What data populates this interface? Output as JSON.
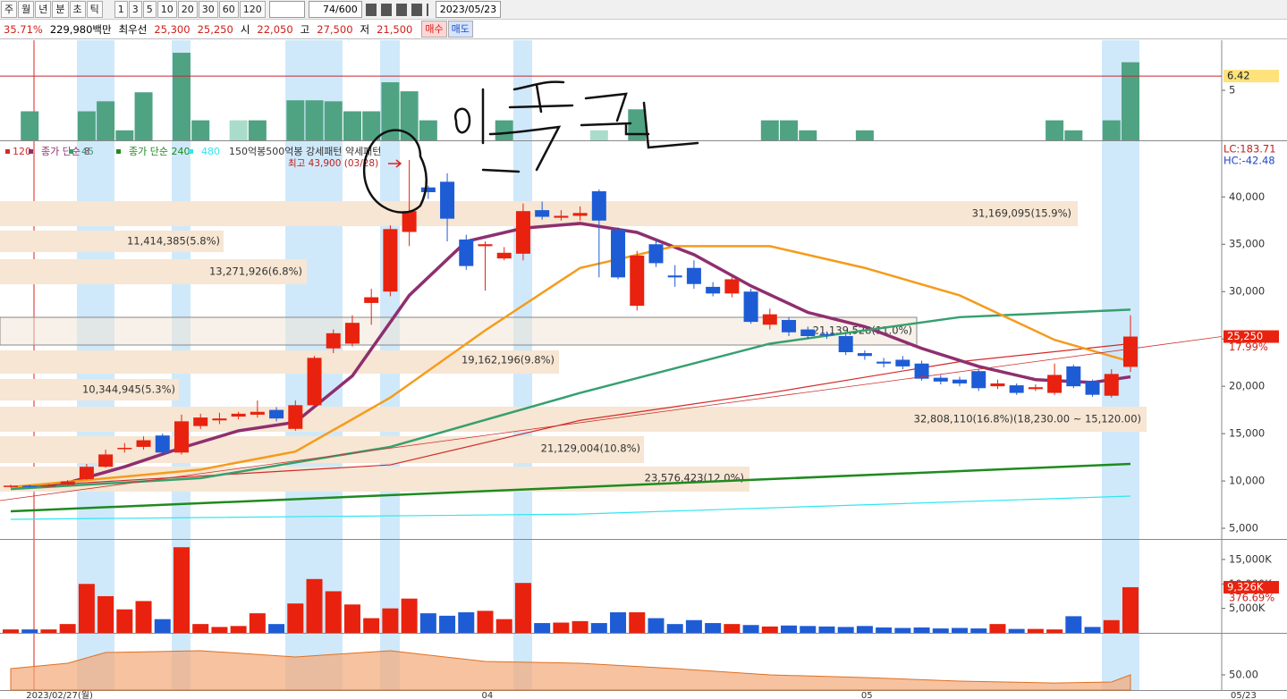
{
  "toolbar": {
    "periods": [
      "주",
      "월",
      "년",
      "분",
      "초",
      "틱"
    ],
    "intervals": [
      "1",
      "3",
      "5",
      "10",
      "20",
      "30",
      "60",
      "120"
    ],
    "count": "74/600",
    "date": "2023/05/23"
  },
  "quote": {
    "change": "35.71%",
    "amount": "229,980백만",
    "best_label": "최우선",
    "best_ask": "25,300",
    "best_bid": "25,250",
    "open_label": "시",
    "open": "22,050",
    "high_label": "고",
    "high": "27,500",
    "low_label": "저",
    "low": "21,500",
    "buy": "매수",
    "sell": "매도"
  },
  "chart_data": [
    {
      "type": "candlestick",
      "categories": [
        null,
        "2023/02/27(월)",
        null,
        null,
        null,
        null,
        null,
        null,
        null,
        null,
        null,
        null,
        null,
        null,
        null,
        null,
        null,
        null,
        null,
        null,
        null,
        null,
        null,
        null,
        null,
        "04",
        null,
        null,
        null,
        null,
        null,
        null,
        null,
        null,
        null,
        null,
        null,
        null,
        null,
        null,
        null,
        null,
        null,
        null,
        null,
        "05",
        null,
        null,
        null,
        null,
        null,
        null,
        null,
        null,
        null,
        null,
        null,
        null,
        null,
        null
      ],
      "open": [
        9400,
        9500,
        9450,
        9600,
        10200,
        11500,
        13400,
        13600,
        14800,
        13000,
        15800,
        16400,
        16800,
        17000,
        17500,
        15500,
        18000,
        24000,
        24500,
        28800,
        30000,
        36300,
        41000,
        41600,
        35500,
        34800,
        33500,
        34000,
        38600,
        37800,
        38000,
        40600,
        36500,
        28500,
        35000,
        31700,
        32500,
        30500,
        29800,
        30000,
        26500,
        27000,
        26000,
        25500,
        25300,
        23500,
        22600,
        22800,
        22400,
        20900,
        20700,
        21600,
        20000,
        20100,
        19700,
        19300,
        22100,
        20500,
        19000,
        22050
      ],
      "high": [
        9600,
        9600,
        9650,
        10100,
        11800,
        13300,
        14000,
        14700,
        15000,
        17000,
        17100,
        17200,
        17300,
        18500,
        17800,
        18500,
        23200,
        26000,
        27500,
        30300,
        37000,
        43900,
        41200,
        42500,
        36000,
        35300,
        34700,
        39300,
        39500,
        38600,
        39000,
        40800,
        36800,
        34300,
        35500,
        32800,
        33300,
        31000,
        31500,
        30300,
        28200,
        27300,
        26300,
        25800,
        25600,
        23800,
        23000,
        23200,
        22700,
        21200,
        21000,
        21800,
        20700,
        20300,
        20200,
        22400,
        22300,
        20700,
        21800,
        27500
      ],
      "low": [
        9300,
        9350,
        9400,
        9500,
        10100,
        11400,
        13000,
        13300,
        12800,
        12800,
        15500,
        16000,
        16500,
        16700,
        16300,
        15300,
        17900,
        23500,
        24200,
        26500,
        29500,
        34800,
        39800,
        35300,
        32300,
        30100,
        33300,
        33300,
        37600,
        37500,
        37500,
        31500,
        31300,
        28000,
        32600,
        30500,
        30300,
        29500,
        29400,
        26600,
        26000,
        25300,
        25000,
        25000,
        23300,
        22800,
        22000,
        21800,
        20600,
        20200,
        20000,
        19500,
        19700,
        19100,
        19500,
        19100,
        19800,
        18900,
        18800,
        21500
      ],
      "close": [
        9500,
        9450,
        9550,
        9950,
        11500,
        12800,
        13500,
        14300,
        13000,
        16300,
        16700,
        16600,
        17100,
        17300,
        16600,
        18000,
        23000,
        25600,
        26700,
        29400,
        36600,
        38500,
        40500,
        37700,
        32700,
        35000,
        34100,
        38500,
        37900,
        38000,
        38300,
        37500,
        31500,
        33800,
        33000,
        31500,
        30800,
        29800,
        31300,
        26800,
        27600,
        25700,
        25300,
        25400,
        23600,
        23200,
        22400,
        22100,
        20800,
        20500,
        20300,
        19800,
        20300,
        19300,
        19900,
        21200,
        20000,
        19100,
        21300,
        25250
      ],
      "up_color": "#e8220e",
      "down_color": "#1e5cd6",
      "ylim": [
        3870,
        45880
      ],
      "yticks": [
        {
          "value": 5000,
          "label": "5,000"
        },
        {
          "value": 10000,
          "label": "10,000"
        },
        {
          "value": 15000,
          "label": "15,000"
        },
        {
          "value": 20000,
          "label": "20,000"
        },
        {
          "value": 25000,
          "label": "25,000"
        },
        {
          "value": 30000,
          "label": "30,000"
        },
        {
          "value": 35000,
          "label": "35,000"
        },
        {
          "value": 40000,
          "label": "40,000"
        }
      ],
      "series": [
        {
          "name": "120",
          "color": "#d42a2a",
          "x": [
            0,
            20,
            30,
            40,
            50,
            59
          ],
          "values": [
            9350,
            11700,
            16400,
            19300,
            22600,
            24500
          ]
        },
        {
          "name": "종가 단순 8",
          "color": "#8e2f6f",
          "x": [
            0,
            3,
            6,
            9,
            12,
            15,
            18,
            21,
            24,
            27,
            30,
            33,
            36,
            39,
            42,
            45,
            48,
            51,
            54,
            57,
            59
          ],
          "values": [
            9300,
            9800,
            11500,
            13500,
            15300,
            16200,
            21100,
            29600,
            35300,
            36700,
            37200,
            36250,
            33900,
            30600,
            27800,
            26300,
            24000,
            22100,
            20700,
            20400,
            21000
          ]
        },
        {
          "name": "45",
          "color": "#35a06e",
          "x": [
            0,
            10,
            20,
            30,
            40,
            50,
            59
          ],
          "values": [
            9150,
            10300,
            13600,
            19300,
            24500,
            27300,
            28100
          ]
        },
        {
          "name": "종가 단순 240",
          "color": "#1f8a1f",
          "x": [
            0,
            30,
            59
          ],
          "values": [
            6800,
            9350,
            11800
          ]
        },
        {
          "name": "480",
          "color": "#2fe6f0",
          "x": [
            0,
            30,
            59
          ],
          "values": [
            5950,
            6500,
            8400
          ]
        },
        {
          "color": "#f59b1c",
          "x": [
            0,
            10,
            15,
            20,
            25,
            30,
            35,
            40,
            45,
            50,
            55,
            59
          ],
          "values": [
            9350,
            11200,
            13100,
            18800,
            25900,
            32500,
            34800,
            34800,
            32500,
            29600,
            24900,
            22600
          ]
        }
      ],
      "pattern_legend": "150억봉500억봉 강세패턴 약세패턴",
      "annotations": [
        "31,169,095(15.9%)",
        "11,414,385(5.8%)",
        "13,271,926(6.8%)",
        "21,139,528(11.0%)",
        "19,162,196(9.8%)",
        "10,344,945(5.3%)",
        "32,808,110(16.8%)(18,230.00 ~ 15,120.00)",
        "21,129,004(10.8%)",
        "23,576,423(12.0%)"
      ],
      "high_note": "최고 43,900 (03/28)",
      "indicators": [
        "LC:183.71",
        "HC:-42.48"
      ],
      "current": {
        "value": 25250,
        "label": "25,250"
      },
      "current_change": {
        "value": 17.99,
        "label": "17.99%"
      }
    },
    {
      "type": "bar",
      "values": [
        700,
        700,
        700,
        1800,
        10000,
        7500,
        4800,
        6500,
        2800,
        17500,
        1800,
        1200,
        1400,
        4000,
        1800,
        6000,
        11000,
        8500,
        5800,
        3000,
        5000,
        7000,
        4000,
        3500,
        4200,
        4500,
        2800,
        10200,
        2000,
        2100,
        2400,
        2000,
        4200,
        4200,
        3000,
        1800,
        2600,
        2000,
        1800,
        1600,
        1300,
        1500,
        1400,
        1300,
        1200,
        1400,
        1100,
        1000,
        1100,
        900,
        1000,
        900,
        1800,
        800,
        800,
        700,
        3400,
        1200,
        2600,
        9326
      ],
      "ylim": [
        0,
        19000
      ],
      "yticks": [
        {
          "value": 5000,
          "label": "5,000K"
        },
        {
          "value": 10000,
          "label": "10,000K"
        },
        {
          "value": 15000,
          "label": "15,000K"
        }
      ],
      "current": {
        "value": 9326,
        "label": "9,326K"
      },
      "current_ratio": {
        "value": 376.69,
        "label": "376.69%"
      }
    },
    {
      "type": "bar",
      "series": [
        {
          "color": "#4fa383",
          "x": [
            1,
            4,
            5,
            6,
            7,
            9,
            10,
            13,
            15,
            16,
            17,
            18,
            19,
            20,
            21,
            22,
            26,
            33,
            40,
            41,
            42,
            45,
            55,
            56,
            58,
            59
          ],
          "values": [
            2.9,
            2.9,
            3.9,
            1.0,
            4.8,
            8.75,
            2.0,
            2.0,
            4.0,
            4.0,
            3.9,
            2.9,
            2.9,
            5.8,
            4.9,
            2.0,
            2.0,
            3.1,
            2.0,
            2.0,
            1.0,
            1.0,
            2.0,
            1.0,
            2.0,
            7.8
          ]
        },
        {
          "color": "#a9dccb",
          "x": [
            12,
            31
          ],
          "values": [
            2.0,
            1.0
          ]
        }
      ],
      "ylim": [
        0,
        10
      ],
      "yticks": [
        5
      ],
      "line_color": "#c0282c",
      "current": {
        "value": 6.42,
        "label": "6.42"
      }
    },
    {
      "type": "area",
      "x": [
        0,
        3,
        5,
        10,
        15,
        20,
        25,
        30,
        35,
        40,
        45,
        50,
        55,
        58,
        59
      ],
      "values": [
        60,
        68.6,
        85.7,
        88.6,
        78.6,
        88.6,
        71.4,
        68.6,
        60,
        50,
        45.7,
        40,
        37,
        38.6,
        50
      ],
      "color": "#f4a878",
      "ylim": [
        25.7,
        111.4
      ],
      "yticks": [
        {
          "value": 50,
          "label": "50.00"
        }
      ]
    }
  ],
  "x_axis": {
    "last_date": "05/23"
  }
}
